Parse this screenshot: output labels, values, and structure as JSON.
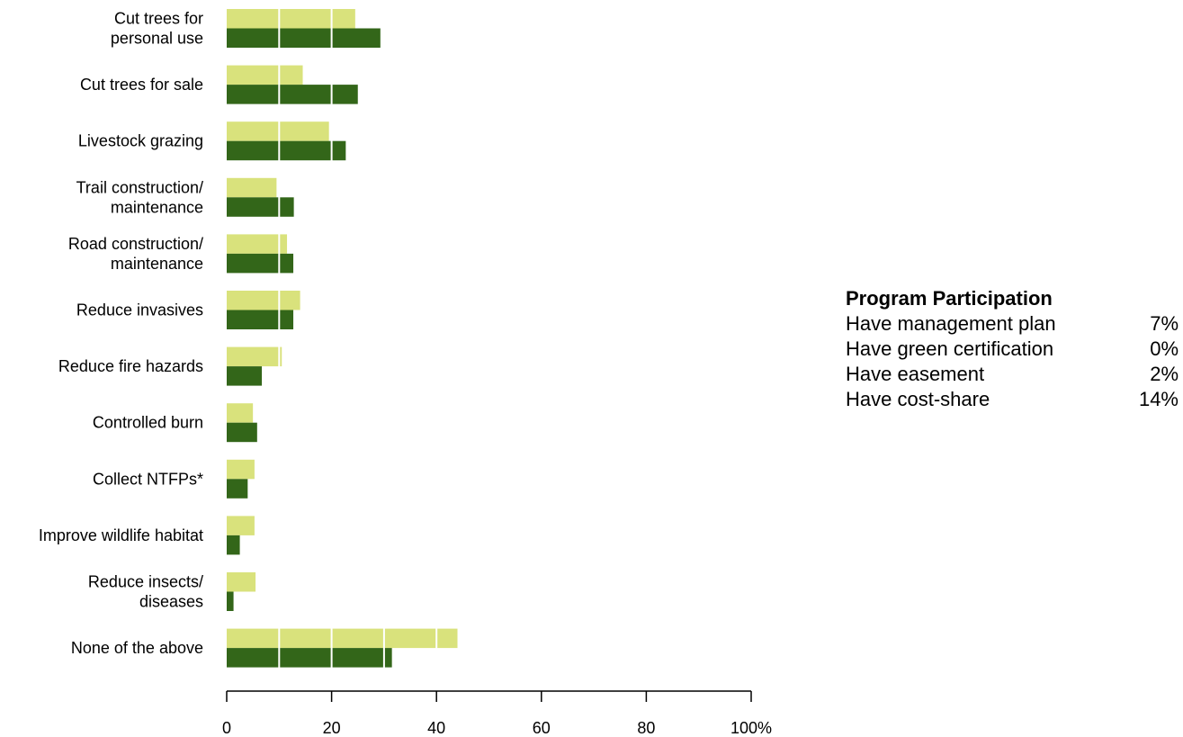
{
  "chart_data": {
    "type": "bar",
    "orientation": "horizontal",
    "categories": [
      [
        "Cut trees for",
        "personal use"
      ],
      [
        "Cut trees for sale"
      ],
      [
        "Livestock grazing"
      ],
      [
        "Trail construction/",
        "maintenance"
      ],
      [
        "Road construction/",
        "maintenance"
      ],
      [
        "Reduce invasives"
      ],
      [
        "Reduce fire hazards"
      ],
      [
        "Controlled burn"
      ],
      [
        "Collect NTFPs*"
      ],
      [
        "Improve wildlife habitat"
      ],
      [
        "Reduce insects/",
        "diseases"
      ],
      [
        "None of the above"
      ]
    ],
    "series": [
      {
        "color": "#d9e27c",
        "values": [
          24.5,
          14.5,
          19.5,
          9.5,
          11.5,
          14,
          10.5,
          5,
          5.3,
          5.3,
          5.5,
          44
        ]
      },
      {
        "color": "#336619",
        "values": [
          29.3,
          25,
          22.7,
          12.8,
          12.7,
          12.7,
          6.7,
          5.8,
          4,
          2.5,
          1.3,
          31.5
        ]
      }
    ],
    "xlim": [
      0,
      100
    ],
    "xticks": [
      "0",
      "20",
      "40",
      "60",
      "80",
      "100%"
    ],
    "gridlines_at": [
      10,
      20,
      30,
      40
    ],
    "grid_color": "#ffffff"
  },
  "panel": {
    "title": "Program Participation",
    "rows": [
      {
        "label": "Have management plan",
        "value": "7%"
      },
      {
        "label": "Have green certification",
        "value": "0%"
      },
      {
        "label": "Have easement",
        "value": "2%"
      },
      {
        "label": "Have cost-share",
        "value": "14%"
      }
    ]
  }
}
